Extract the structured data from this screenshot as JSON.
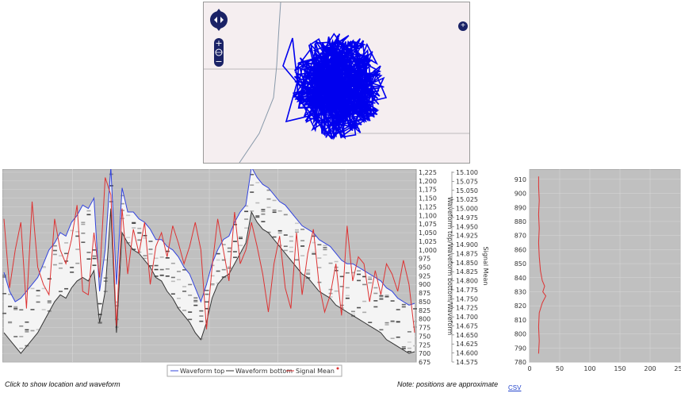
{
  "map": {
    "controls": [
      "pan-left",
      "pan-right",
      "pan-up",
      "pan-down",
      "zoom-in",
      "globe",
      "zoom-out",
      "expand"
    ],
    "track_color": "#0000ee"
  },
  "chart_data": [
    {
      "type": "line",
      "yaxis_left": {
        "label": "Waveform top/Waveform bottom/Waveform",
        "range": [
          675,
          1225
        ],
        "ticks": [
          "1,225",
          "1,200",
          "1,175",
          "1,150",
          "1,125",
          "1,100",
          "1,075",
          "1,050",
          "1,025",
          "1,000",
          "975",
          "950",
          "925",
          "900",
          "875",
          "850",
          "825",
          "800",
          "775",
          "750",
          "725",
          "700",
          "675"
        ]
      },
      "yaxis_right": {
        "label": "Signal Mean",
        "range": [
          14.575,
          15.1
        ],
        "ticks": [
          "15.100",
          "15.075",
          "15.050",
          "15.025",
          "15.000",
          "14.975",
          "14.950",
          "14.925",
          "14.900",
          "14.875",
          "14.850",
          "14.825",
          "14.800",
          "14.775",
          "14.750",
          "14.725",
          "14.700",
          "14.675",
          "14.650",
          "14.625",
          "14.600",
          "14.575"
        ]
      },
      "legend": [
        {
          "name": "Waveform top",
          "color": "#3344dd"
        },
        {
          "name": "Waveform bottom",
          "color": "#333333"
        },
        {
          "name": "Signal Mean",
          "color": "#dd3333"
        }
      ],
      "series": [
        {
          "name": "Waveform top",
          "axis": "left",
          "values": [
            935,
            880,
            850,
            860,
            880,
            900,
            920,
            960,
            1000,
            1020,
            1050,
            1040,
            1080,
            1100,
            1130,
            1120,
            1150,
            880,
            1000,
            1240,
            900,
            1180,
            1110,
            1110,
            1090,
            1080,
            1060,
            1030,
            1030,
            1010,
            1000,
            980,
            950,
            930,
            890,
            850,
            900,
            960,
            1000,
            1030,
            1040,
            1080,
            1110,
            1130,
            1240,
            1210,
            1190,
            1180,
            1160,
            1140,
            1130,
            1110,
            1090,
            1070,
            1060,
            1050,
            1030,
            1020,
            1010,
            990,
            970,
            960,
            960,
            950,
            940,
            930,
            920,
            910,
            890,
            880,
            860,
            850,
            840,
            845
          ]
        },
        {
          "name": "Waveform bottom",
          "axis": "left",
          "values": [
            760,
            740,
            720,
            700,
            720,
            740,
            760,
            790,
            820,
            850,
            870,
            860,
            890,
            910,
            920,
            910,
            940,
            790,
            880,
            1120,
            760,
            1050,
            1020,
            1000,
            990,
            970,
            950,
            920,
            910,
            880,
            860,
            830,
            810,
            790,
            760,
            740,
            790,
            860,
            900,
            920,
            930,
            960,
            990,
            1020,
            1110,
            1080,
            1060,
            1050,
            1030,
            1010,
            990,
            970,
            950,
            930,
            920,
            900,
            880,
            870,
            860,
            840,
            830,
            820,
            810,
            800,
            790,
            780,
            770,
            760,
            740,
            730,
            720,
            710,
            700,
            705
          ]
        },
        {
          "name": "Signal Mean",
          "axis": "left",
          "values": [
            1090,
            890,
            1000,
            1080,
            830,
            1140,
            950,
            900,
            870,
            1090,
            1000,
            960,
            1030,
            1130,
            880,
            870,
            1050,
            920,
            1210,
            1160,
            780,
            1120,
            930,
            1060,
            990,
            1080,
            900,
            1010,
            1050,
            980,
            1070,
            1020,
            960,
            1010,
            1080,
            1000,
            770,
            950,
            1090,
            1000,
            910,
            1110,
            960,
            1000,
            1080,
            1010,
            930,
            820,
            960,
            1040,
            890,
            830,
            1050,
            870,
            990,
            1060,
            900,
            820,
            870,
            960,
            810,
            1070,
            910,
            980,
            960,
            850,
            940,
            870,
            960,
            930,
            880,
            970,
            900,
            760
          ]
        }
      ]
    },
    {
      "type": "line",
      "xaxis": {
        "range": [
          0,
          250
        ],
        "ticks": [
          "0",
          "50",
          "100",
          "150",
          "200",
          "250"
        ]
      },
      "yaxis": {
        "range": [
          780,
          915
        ],
        "ticks": [
          "910",
          "900",
          "890",
          "880",
          "870",
          "860",
          "850",
          "840",
          "830",
          "820",
          "810",
          "800",
          "790",
          "780"
        ]
      },
      "series": [
        {
          "name": "",
          "color": "#dd3333",
          "points": [
            [
              15,
              912
            ],
            [
              15,
              905
            ],
            [
              16,
              895
            ],
            [
              15,
              885
            ],
            [
              16,
              875
            ],
            [
              15,
              865
            ],
            [
              16,
              855
            ],
            [
              18,
              845
            ],
            [
              21,
              838
            ],
            [
              25,
              834
            ],
            [
              22,
              830
            ],
            [
              27,
              827
            ],
            [
              21,
              822
            ],
            [
              16,
              815
            ],
            [
              15,
              805
            ],
            [
              16,
              795
            ],
            [
              15,
              786
            ]
          ]
        }
      ]
    }
  ],
  "captions": {
    "left": "Click to show location and waveform",
    "right": "Note: positions are approximate",
    "csv": "CSV"
  }
}
